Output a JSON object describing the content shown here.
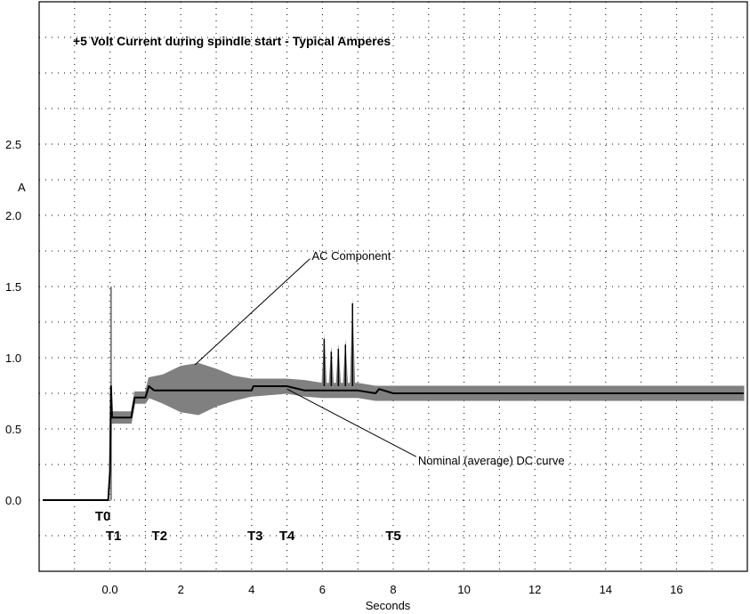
{
  "chart_data": {
    "type": "line",
    "title": "+5 Volt Current during spindle start - Typical Amperes",
    "ylabel": "A",
    "xlabel": "Seconds",
    "xlim": [
      -2,
      18
    ],
    "ylim": [
      -0.5,
      3.5
    ],
    "x_ticks": [
      0,
      2,
      4,
      6,
      8,
      10,
      12,
      14,
      16
    ],
    "x_tick_labels": [
      "0.0",
      "2",
      "4",
      "6",
      "8",
      "10",
      "12",
      "14",
      "16"
    ],
    "y_ticks": [
      0,
      0.5,
      1,
      1.5,
      2,
      2.5
    ],
    "y_tick_labels": [
      "0.0",
      "0.5",
      "1.0",
      "1.5",
      "2.0",
      "2.5"
    ],
    "grid": true,
    "series": [
      {
        "name": "Nominal (average) DC curve",
        "color": "#000000",
        "x": [
          -1.9,
          -0.05,
          0,
          0.03,
          0.06,
          0.6,
          0.7,
          1.0,
          1.1,
          1.25,
          3.0,
          4.0,
          4.05,
          4.2,
          5.0,
          5.5,
          6.0,
          7.0,
          7.5,
          7.6,
          8.0,
          10,
          12,
          14,
          16,
          17.9
        ],
        "values": [
          0.0,
          0.0,
          0.2,
          0.8,
          0.58,
          0.58,
          0.72,
          0.72,
          0.8,
          0.77,
          0.77,
          0.77,
          0.8,
          0.8,
          0.8,
          0.77,
          0.77,
          0.77,
          0.75,
          0.78,
          0.75,
          0.75,
          0.75,
          0.75,
          0.75,
          0.75
        ]
      },
      {
        "name": "AC Component",
        "color": "#808080",
        "x_upper": [
          0.06,
          0.6,
          0.7,
          1.0,
          1.1,
          1.5,
          2.0,
          2.5,
          3.0,
          3.5,
          4.0,
          5.0,
          5.5,
          6.0,
          7.0,
          7.5,
          8.0,
          17.9
        ],
        "upper": [
          0.62,
          0.62,
          0.76,
          0.76,
          0.86,
          0.88,
          0.94,
          0.96,
          0.92,
          0.87,
          0.85,
          0.85,
          0.84,
          0.82,
          0.82,
          0.8,
          0.8,
          0.8
        ],
        "x_lower": [
          0.06,
          0.6,
          0.7,
          1.0,
          1.1,
          1.5,
          2.0,
          2.5,
          3.0,
          3.5,
          4.0,
          5.0,
          5.5,
          6.0,
          7.0,
          7.5,
          8.0,
          17.9
        ],
        "lower": [
          0.54,
          0.54,
          0.68,
          0.68,
          0.72,
          0.68,
          0.62,
          0.6,
          0.66,
          0.7,
          0.73,
          0.75,
          0.73,
          0.72,
          0.72,
          0.7,
          0.7,
          0.7
        ],
        "spikes": [
          {
            "x": 6.05,
            "peak": 1.17
          },
          {
            "x": 6.25,
            "peak": 1.08
          },
          {
            "x": 6.45,
            "peak": 1.1
          },
          {
            "x": 6.65,
            "peak": 1.13
          },
          {
            "x": 6.85,
            "peak": 1.42
          }
        ],
        "startup_spike": {
          "x": 0.03,
          "peak": 1.5
        }
      }
    ],
    "annotations": [
      {
        "text": "AC Component",
        "x": 5.7,
        "y": 1.72,
        "pointer_x": 2.4,
        "pointer_y": 0.95
      },
      {
        "text": "Nominal (average) DC curve",
        "x": 8.7,
        "y": 0.28,
        "pointer_x": 5.0,
        "pointer_y": 0.78
      }
    ],
    "time_markers": [
      {
        "label": "T0",
        "x": -0.2,
        "row": 0
      },
      {
        "label": "T1",
        "x": 0.1,
        "row": 1
      },
      {
        "label": "T2",
        "x": 1.4,
        "row": 1
      },
      {
        "label": "T3",
        "x": 4.1,
        "row": 1
      },
      {
        "label": "T4",
        "x": 5.0,
        "row": 1
      },
      {
        "label": "T5",
        "x": 8.0,
        "row": 1
      }
    ]
  }
}
